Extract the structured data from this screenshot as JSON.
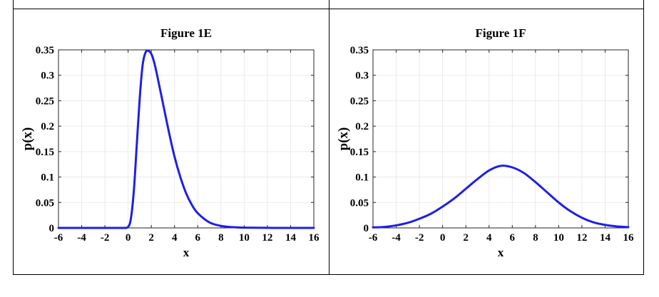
{
  "chart_data": [
    {
      "type": "line",
      "title": "Figure 1E",
      "xlabel": "x",
      "ylabel": "p(x)",
      "xlim": [
        -6,
        16
      ],
      "ylim": [
        0,
        0.35
      ],
      "xticks": [
        -6,
        -4,
        -2,
        0,
        2,
        4,
        6,
        8,
        10,
        12,
        14,
        16
      ],
      "yticks": [
        0,
        0.05,
        0.1,
        0.15,
        0.2,
        0.25,
        0.3,
        0.35
      ],
      "ytick_labels": [
        "0",
        "0.05",
        "0.1",
        "0.15",
        "0.2",
        "0.25",
        "0.3",
        "0.35"
      ],
      "grid": true,
      "series": [
        {
          "color": "#1f1fe6",
          "x": [
            -6,
            -1,
            -0.5,
            0,
            0.25,
            0.5,
            0.75,
            1,
            1.25,
            1.5,
            1.75,
            2,
            2.25,
            2.5,
            3,
            3.5,
            4,
            4.5,
            5,
            5.5,
            6,
            7,
            8,
            9,
            10,
            12,
            16
          ],
          "y": [
            0,
            0,
            0,
            0.002,
            0.02,
            0.075,
            0.165,
            0.255,
            0.32,
            0.345,
            0.348,
            0.342,
            0.325,
            0.3,
            0.245,
            0.19,
            0.14,
            0.1,
            0.068,
            0.045,
            0.029,
            0.011,
            0.004,
            0.0015,
            0.0005,
            0.0001,
            0
          ]
        }
      ]
    },
    {
      "type": "line",
      "title": "Figure 1F",
      "xlabel": "x",
      "ylabel": "p(x)",
      "xlim": [
        -6,
        16
      ],
      "ylim": [
        0,
        0.35
      ],
      "xticks": [
        -6,
        -4,
        -2,
        0,
        2,
        4,
        6,
        8,
        10,
        12,
        14,
        16
      ],
      "yticks": [
        0,
        0.05,
        0.1,
        0.15,
        0.2,
        0.25,
        0.3,
        0.35
      ],
      "ytick_labels": [
        "0",
        "0.05",
        "0.1",
        "0.15",
        "0.2",
        "0.25",
        "0.3",
        "0.35"
      ],
      "grid": true,
      "series": [
        {
          "color": "#1f1fe6",
          "x": [
            -6,
            -5,
            -4,
            -3,
            -2,
            -1,
            0,
            1,
            2,
            3,
            4,
            5,
            6,
            7,
            8,
            9,
            10,
            11,
            12,
            13,
            14,
            15,
            16
          ],
          "y": [
            0.001,
            0.002,
            0.005,
            0.01,
            0.018,
            0.028,
            0.042,
            0.058,
            0.077,
            0.096,
            0.113,
            0.122,
            0.119,
            0.108,
            0.09,
            0.07,
            0.05,
            0.033,
            0.02,
            0.011,
            0.006,
            0.003,
            0.0015
          ]
        }
      ]
    }
  ]
}
